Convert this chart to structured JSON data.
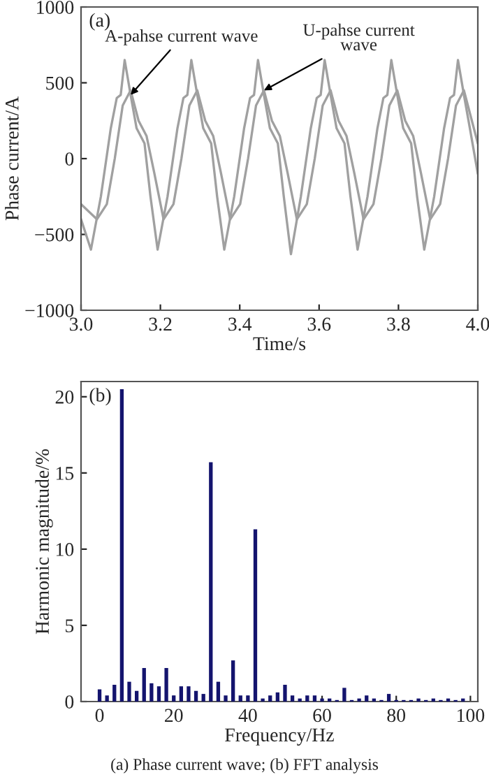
{
  "chart_data": [
    {
      "type": "line",
      "xlabel": "Time/s",
      "ylabel": "Phase current/A",
      "xlim": [
        3.0,
        4.0
      ],
      "ylim": [
        -1000,
        1000
      ],
      "xticks": [
        {
          "value": 3.0,
          "label": "3.0"
        },
        {
          "value": 3.2,
          "label": "3.2"
        },
        {
          "value": 3.4,
          "label": "3.4"
        },
        {
          "value": 3.6,
          "label": "3.6"
        },
        {
          "value": 3.8,
          "label": "3.8"
        },
        {
          "value": 4.0,
          "label": "4.0"
        }
      ],
      "yticks": [
        {
          "value": -1000,
          "label": "−1000"
        },
        {
          "value": -500,
          "label": "−500"
        },
        0,
        500,
        1000
      ],
      "grid": false,
      "legend": false,
      "series": [
        {
          "color": "#a0a0a0",
          "x": [
            3.0,
            3.025,
            3.05,
            3.075,
            3.09,
            3.1,
            3.11,
            3.125,
            3.14,
            3.16,
            3.175,
            3.193,
            3.218,
            3.243,
            3.258,
            3.268,
            3.278,
            3.293,
            3.308,
            3.328,
            3.343,
            3.361,
            3.386,
            3.411,
            3.426,
            3.436,
            3.446,
            3.461,
            3.476,
            3.496,
            3.511,
            3.529,
            3.554,
            3.579,
            3.594,
            3.604,
            3.614,
            3.629,
            3.644,
            3.664,
            3.679,
            3.697,
            3.722,
            3.747,
            3.762,
            3.772,
            3.782,
            3.797,
            3.812,
            3.832,
            3.847,
            3.865,
            3.89,
            3.915,
            3.93,
            3.94,
            3.95,
            3.965,
            3.98,
            4.0
          ],
          "values": [
            -400,
            -600,
            -250,
            200,
            400,
            420,
            650,
            420,
            200,
            100,
            -250,
            -600,
            -250,
            200,
            400,
            420,
            650,
            420,
            200,
            100,
            -250,
            -600,
            -250,
            200,
            400,
            420,
            650,
            420,
            200,
            100,
            -250,
            -630,
            -250,
            200,
            400,
            420,
            650,
            420,
            200,
            100,
            -250,
            -600,
            -250,
            200,
            400,
            420,
            650,
            420,
            200,
            100,
            -250,
            -600,
            -250,
            200,
            400,
            420,
            650,
            420,
            200,
            -100
          ]
        },
        {
          "color": "#a0a0a0",
          "x": [
            3.0,
            3.04,
            3.065,
            3.085,
            3.105,
            3.125,
            3.145,
            3.165,
            3.185,
            3.208,
            3.233,
            3.253,
            3.273,
            3.293,
            3.313,
            3.333,
            3.353,
            3.376,
            3.401,
            3.421,
            3.441,
            3.461,
            3.481,
            3.501,
            3.521,
            3.544,
            3.569,
            3.589,
            3.609,
            3.629,
            3.649,
            3.669,
            3.689,
            3.712,
            3.737,
            3.757,
            3.777,
            3.797,
            3.817,
            3.837,
            3.857,
            3.88,
            3.905,
            3.925,
            3.945,
            3.965,
            3.985,
            4.0
          ],
          "values": [
            -300,
            -400,
            -300,
            0,
            350,
            450,
            250,
            150,
            -100,
            -400,
            -300,
            0,
            350,
            450,
            250,
            150,
            -100,
            -400,
            -300,
            0,
            350,
            450,
            250,
            150,
            -100,
            -400,
            -300,
            0,
            350,
            450,
            250,
            150,
            -100,
            -400,
            -300,
            0,
            350,
            450,
            250,
            150,
            -100,
            -400,
            -300,
            0,
            350,
            450,
            250,
            100
          ]
        }
      ],
      "annotations": [
        "(a)",
        {
          "text": "A-pahse current wave",
          "x": 3.125,
          "y": 420
        },
        {
          "text": "U-pahse current\nwave",
          "x": 3.461,
          "y": 450
        }
      ]
    },
    {
      "type": "bar",
      "xlabel": "Frequency/Hz",
      "ylabel": "Harmonic magnitude/%",
      "xlim": [
        -5,
        102
      ],
      "ylim": [
        0,
        21
      ],
      "xticks": [
        0,
        20,
        40,
        60,
        80,
        100
      ],
      "yticks": [
        0,
        5,
        10,
        15,
        20
      ],
      "grid": false,
      "legend": false,
      "color": "#14146e",
      "x": [
        0,
        2,
        4,
        6,
        8,
        10,
        12,
        14,
        16,
        18,
        20,
        22,
        24,
        26,
        28,
        30,
        32,
        34,
        36,
        38,
        40,
        42,
        44,
        46,
        48,
        50,
        52,
        54,
        56,
        58,
        60,
        62,
        64,
        66,
        68,
        70,
        72,
        74,
        76,
        78,
        80,
        82,
        84,
        86,
        88,
        90,
        92,
        94,
        96,
        98
      ],
      "values": [
        0.8,
        0.4,
        1.1,
        20.5,
        1.3,
        0.7,
        2.2,
        1.2,
        1.0,
        2.2,
        0.4,
        1.0,
        1.0,
        0.7,
        0.5,
        15.7,
        1.3,
        0.4,
        2.7,
        0.4,
        0.4,
        11.3,
        0.2,
        0.4,
        0.6,
        1.1,
        0.4,
        0.2,
        0.4,
        0.4,
        0.2,
        0.2,
        0.1,
        0.9,
        0.1,
        0.2,
        0.4,
        0.2,
        0.1,
        0.5,
        0.1,
        0.1,
        0.1,
        0.2,
        0.1,
        0.2,
        0.1,
        0.2,
        0.1,
        0.2
      ],
      "annotations": [
        "(b)",
        "(a) Phase current wave; (b) FFT analysis"
      ]
    }
  ]
}
